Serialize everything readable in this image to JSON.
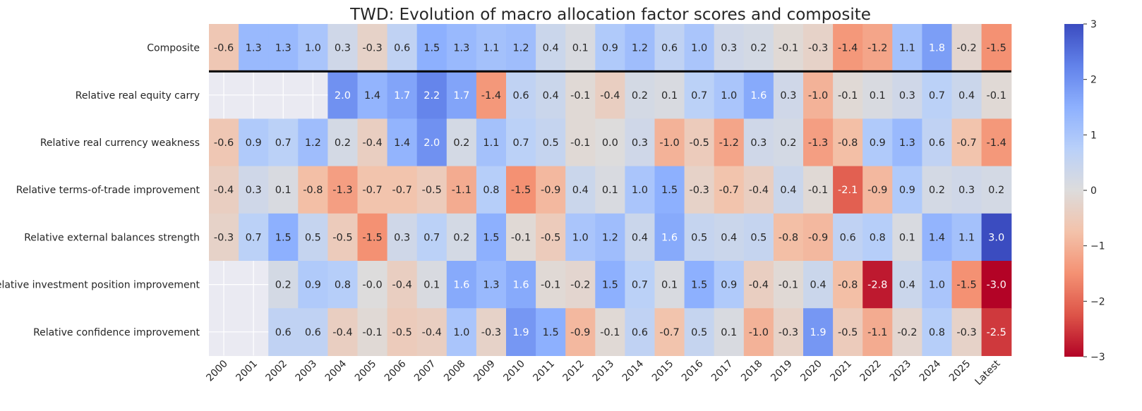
{
  "chart_data": {
    "type": "heatmap",
    "title": "TWD: Evolution of macro allocation factor scores and composite",
    "columns": [
      "2000",
      "2001",
      "2002",
      "2003",
      "2004",
      "2005",
      "2006",
      "2007",
      "2008",
      "2009",
      "2010",
      "2011",
      "2012",
      "2013",
      "2014",
      "2015",
      "2016",
      "2017",
      "2018",
      "2019",
      "2020",
      "2021",
      "2022",
      "2023",
      "2024",
      "2025",
      "Latest"
    ],
    "rows": [
      "Composite",
      "Relative real equity carry",
      "Relative real currency weakness",
      "Relative terms-of-trade improvement",
      "Relative external balances strength",
      "Relative investment position improvement",
      "Relative confidence improvement"
    ],
    "values": [
      [
        -0.6,
        1.3,
        1.3,
        1.0,
        0.3,
        -0.3,
        0.6,
        1.5,
        1.3,
        1.1,
        1.2,
        0.4,
        0.1,
        0.9,
        1.2,
        0.6,
        1.0,
        0.3,
        0.2,
        -0.1,
        -0.3,
        -1.4,
        -1.2,
        1.1,
        1.8,
        -0.2,
        -1.5
      ],
      [
        null,
        null,
        null,
        null,
        2.0,
        1.4,
        1.7,
        2.2,
        1.7,
        -1.4,
        0.6,
        0.4,
        -0.1,
        -0.4,
        0.2,
        0.1,
        0.7,
        1.0,
        1.6,
        0.3,
        -1.0,
        -0.1,
        0.1,
        0.3,
        0.7,
        0.4,
        -0.1
      ],
      [
        -0.6,
        0.9,
        0.7,
        1.2,
        0.2,
        -0.4,
        1.4,
        2.0,
        0.2,
        1.1,
        0.7,
        0.5,
        -0.1,
        0.0,
        0.3,
        -1.0,
        -0.5,
        -1.2,
        0.3,
        0.2,
        -1.3,
        -0.8,
        0.9,
        1.3,
        0.6,
        -0.7,
        -1.4
      ],
      [
        -0.4,
        0.3,
        0.1,
        -0.8,
        -1.3,
        -0.7,
        -0.7,
        -0.5,
        -1.1,
        0.8,
        -1.5,
        -0.9,
        0.4,
        0.1,
        1.0,
        1.5,
        -0.3,
        -0.7,
        -0.4,
        0.4,
        -0.1,
        -2.1,
        -0.9,
        0.9,
        0.2,
        0.3,
        0.2
      ],
      [
        -0.3,
        0.7,
        1.5,
        0.5,
        -0.5,
        -1.5,
        0.3,
        0.7,
        0.2,
        1.5,
        -0.1,
        -0.5,
        1.0,
        1.2,
        0.4,
        1.6,
        0.5,
        0.4,
        0.5,
        -0.8,
        -0.9,
        0.6,
        0.8,
        0.1,
        1.4,
        1.1,
        3.0
      ],
      [
        null,
        null,
        0.2,
        0.9,
        0.8,
        -0.0,
        -0.4,
        0.1,
        1.6,
        1.3,
        1.6,
        -0.1,
        -0.2,
        1.5,
        0.7,
        0.1,
        1.5,
        0.9,
        -0.4,
        -0.1,
        0.4,
        -0.8,
        -2.8,
        0.4,
        1.0,
        -1.5,
        -3.0
      ],
      [
        null,
        null,
        0.6,
        0.6,
        -0.4,
        -0.1,
        -0.5,
        -0.4,
        1.0,
        -0.3,
        1.9,
        1.5,
        -0.9,
        -0.1,
        0.6,
        -0.7,
        0.5,
        0.1,
        -1.0,
        -0.3,
        1.9,
        -0.5,
        -1.1,
        -0.2,
        0.8,
        -0.3,
        -2.5
      ]
    ],
    "labels": [
      [
        "-0.6",
        "1.3",
        "1.3",
        "1.0",
        "0.3",
        "-0.3",
        "0.6",
        "1.5",
        "1.3",
        "1.1",
        "1.2",
        "0.4",
        "0.1",
        "0.9",
        "1.2",
        "0.6",
        "1.0",
        "0.3",
        "0.2",
        "-0.1",
        "-0.3",
        "-1.4",
        "-1.2",
        "1.1",
        "1.8",
        "-0.2",
        "-1.5"
      ],
      [
        "",
        "",
        "",
        "",
        "2.0",
        "1.4",
        "1.7",
        "2.2",
        "1.7",
        "-1.4",
        "0.6",
        "0.4",
        "-0.1",
        "-0.4",
        "0.2",
        "0.1",
        "0.7",
        "1.0",
        "1.6",
        "0.3",
        "-1.0",
        "-0.1",
        "0.1",
        "0.3",
        "0.7",
        "0.4",
        "-0.1"
      ],
      [
        "-0.6",
        "0.9",
        "0.7",
        "1.2",
        "0.2",
        "-0.4",
        "1.4",
        "2.0",
        "0.2",
        "1.1",
        "0.7",
        "0.5",
        "-0.1",
        "0.0",
        "0.3",
        "-1.0",
        "-0.5",
        "-1.2",
        "0.3",
        "0.2",
        "-1.3",
        "-0.8",
        "0.9",
        "1.3",
        "0.6",
        "-0.7",
        "-1.4"
      ],
      [
        "-0.4",
        "0.3",
        "0.1",
        "-0.8",
        "-1.3",
        "-0.7",
        "-0.7",
        "-0.5",
        "-1.1",
        "0.8",
        "-1.5",
        "-0.9",
        "0.4",
        "0.1",
        "1.0",
        "1.5",
        "-0.3",
        "-0.7",
        "-0.4",
        "0.4",
        "-0.1",
        "-2.1",
        "-0.9",
        "0.9",
        "0.2",
        "0.3",
        "0.2"
      ],
      [
        "-0.3",
        "0.7",
        "1.5",
        "0.5",
        "-0.5",
        "-1.5",
        "0.3",
        "0.7",
        "0.2",
        "1.5",
        "-0.1",
        "-0.5",
        "1.0",
        "1.2",
        "0.4",
        "1.6",
        "0.5",
        "0.4",
        "0.5",
        "-0.8",
        "-0.9",
        "0.6",
        "0.8",
        "0.1",
        "1.4",
        "1.1",
        "3.0"
      ],
      [
        "",
        "",
        "0.2",
        "0.9",
        "0.8",
        "-0.0",
        "-0.4",
        "0.1",
        "1.6",
        "1.3",
        "1.6",
        "-0.1",
        "-0.2",
        "1.5",
        "0.7",
        "0.1",
        "1.5",
        "0.9",
        "-0.4",
        "-0.1",
        "0.4",
        "-0.8",
        "-2.8",
        "0.4",
        "1.0",
        "-1.5",
        "-3.0"
      ],
      [
        "",
        "",
        "0.6",
        "0.6",
        "-0.4",
        "-0.1",
        "-0.5",
        "-0.4",
        "1.0",
        "-0.3",
        "1.9",
        "1.5",
        "-0.9",
        "-0.1",
        "0.6",
        "-0.7",
        "0.5",
        "0.1",
        "-1.0",
        "-0.3",
        "1.9",
        "-0.5",
        "-1.1",
        "-0.2",
        "0.8",
        "-0.3",
        "-2.5"
      ]
    ],
    "colorbar": {
      "min": -3,
      "max": 3,
      "ticks": [
        3,
        2,
        1,
        0,
        -1,
        -2,
        -3
      ],
      "tick_labels": [
        "3",
        "2",
        "1",
        "0",
        "−1",
        "−2",
        "−3"
      ],
      "colormap": "coolwarm_r"
    },
    "missing_color": "#eaeaf2",
    "separator_after_row": "Composite"
  }
}
